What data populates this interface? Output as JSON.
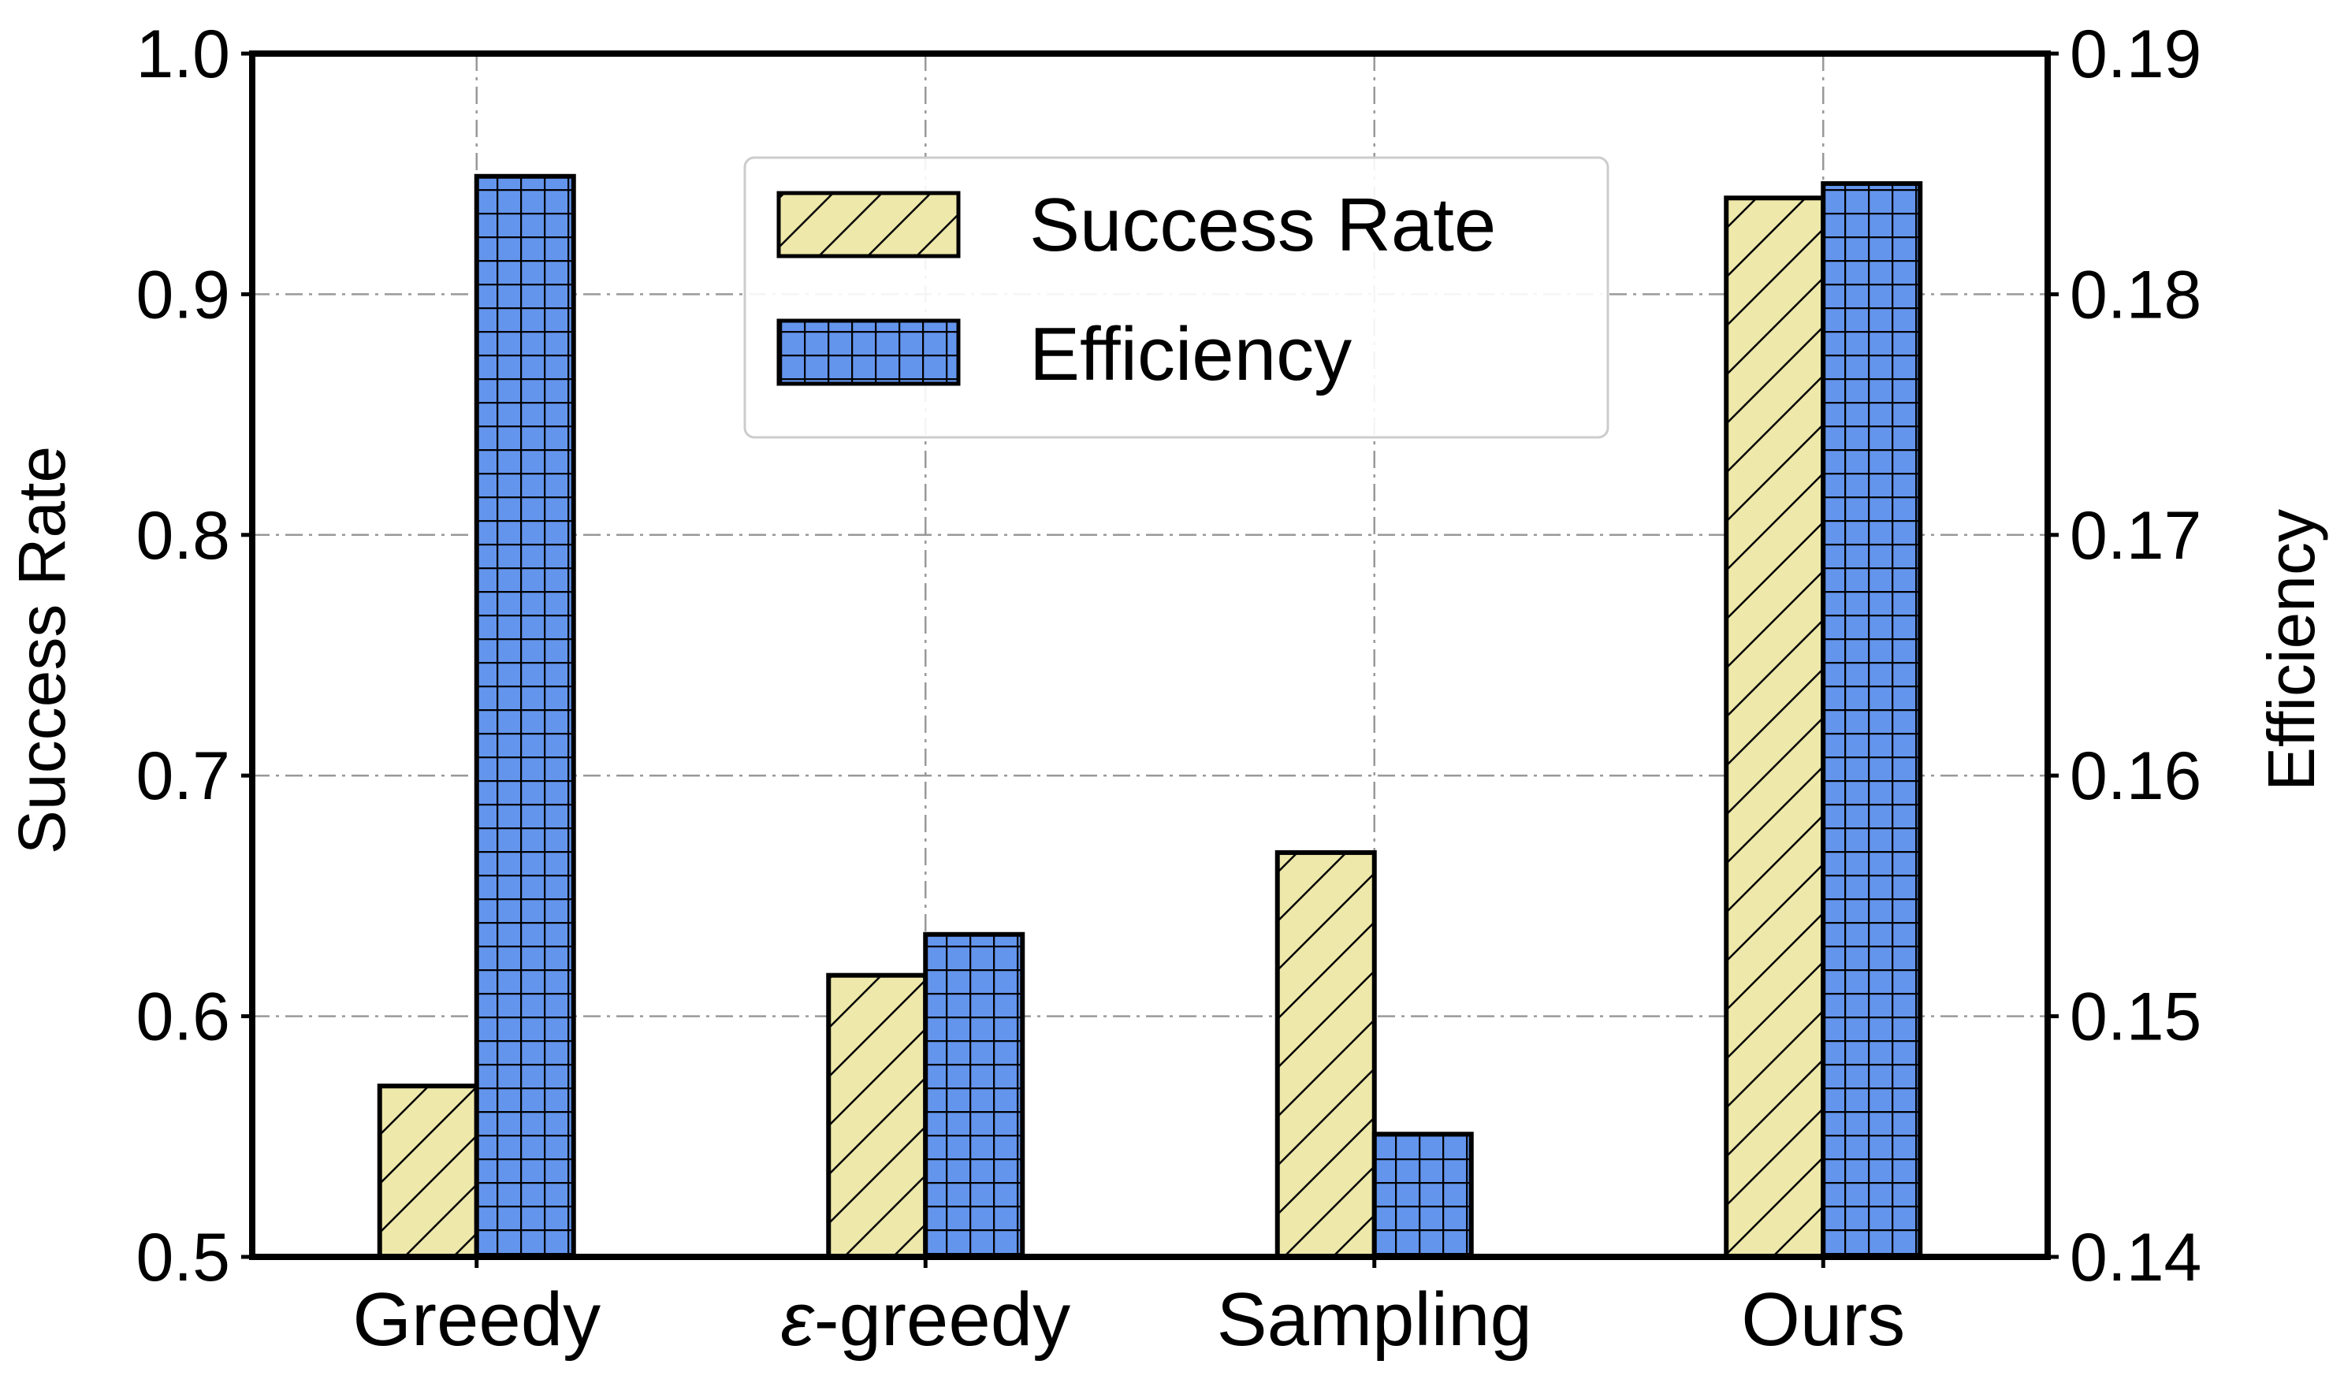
{
  "chart_data": {
    "type": "bar",
    "categories": [
      "Greedy",
      "ε-greedy",
      "Sampling",
      "Ours"
    ],
    "category_prefix": [
      "",
      "ε",
      "",
      ""
    ],
    "category_rest": [
      "Greedy",
      "-greedy",
      "Sampling",
      "Ours"
    ],
    "series": [
      {
        "name": "Success Rate",
        "axis": "left",
        "values": [
          0.571,
          0.617,
          0.668,
          0.94
        ],
        "color": "#EEE8AA",
        "pattern": "diagonal-hatch"
      },
      {
        "name": "Efficiency",
        "axis": "right",
        "values": [
          0.1849,
          0.1534,
          0.1451,
          0.1846
        ],
        "color": "#6495ED",
        "pattern": "grid-hatch"
      }
    ],
    "ylabel": "Success Rate",
    "ylabel_right": "Efficiency",
    "ylim": [
      0.5,
      1.0
    ],
    "ylim_right": [
      0.14,
      0.19
    ],
    "yticks": [
      "0.5",
      "0.6",
      "0.7",
      "0.8",
      "0.9",
      "1.0"
    ],
    "yticks_right": [
      "0.14",
      "0.15",
      "0.16",
      "0.17",
      "0.18",
      "0.19"
    ],
    "grid": true,
    "legend_position": "top-center"
  }
}
